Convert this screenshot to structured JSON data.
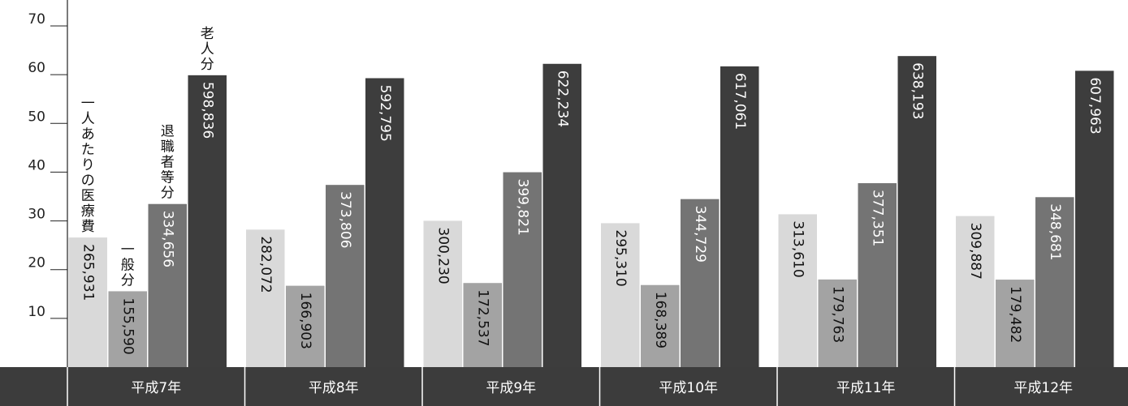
{
  "chart_data": {
    "type": "bar",
    "title": "",
    "xlabel": "",
    "ylabel": "",
    "ylim": [
      0,
      70
    ],
    "yticks": [
      10,
      20,
      30,
      40,
      50,
      60,
      70
    ],
    "grid": false,
    "categories": [
      "平成7年",
      "平成8年",
      "平成9年",
      "平成10年",
      "平成11年",
      "平成12年"
    ],
    "series": [
      {
        "name": "一人あたりの医療費",
        "color": "#d9d9d9",
        "values": [
          265931,
          282072,
          300230,
          295310,
          313610,
          309887
        ],
        "labels": [
          "265,931",
          "282,072",
          "300,230",
          "295,310",
          "313,610",
          "309,887"
        ]
      },
      {
        "name": "一般分",
        "color": "#a3a3a3",
        "values": [
          155590,
          166903,
          172537,
          168389,
          179763,
          179482
        ],
        "labels": [
          "155,590",
          "166,903",
          "172,537",
          "168,389",
          "179,763",
          "179,482"
        ]
      },
      {
        "name": "退職者等分",
        "color": "#747474",
        "values": [
          334656,
          373806,
          399821,
          344729,
          377351,
          348681
        ],
        "labels": [
          "334,656",
          "373,806",
          "399,821",
          "344,729",
          "377,351",
          "348,681"
        ]
      },
      {
        "name": "老人分",
        "color": "#3d3d3d",
        "values": [
          598836,
          592795,
          622234,
          617061,
          638193,
          607963
        ],
        "labels": [
          "598,836",
          "592,795",
          "622,234",
          "617,061",
          "638,193",
          "607,963"
        ]
      }
    ],
    "series_label_text": [
      "一人あたりの医療費",
      "一般分",
      "退職者等分",
      "老人分"
    ],
    "category_band_color": "#3c3c3c"
  }
}
